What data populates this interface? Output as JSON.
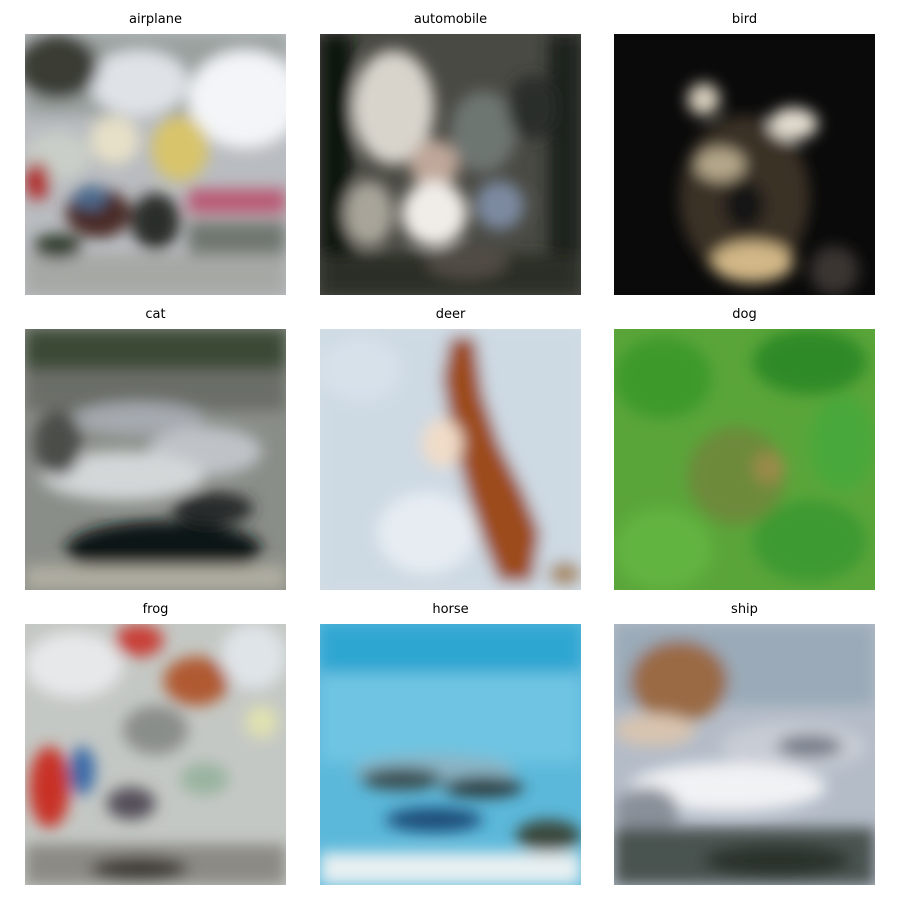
{
  "panels": [
    {
      "title": "airplane"
    },
    {
      "title": "automobile"
    },
    {
      "title": "bird"
    },
    {
      "title": "cat"
    },
    {
      "title": "deer"
    },
    {
      "title": "dog"
    },
    {
      "title": "frog"
    },
    {
      "title": "horse"
    },
    {
      "title": "ship"
    }
  ]
}
